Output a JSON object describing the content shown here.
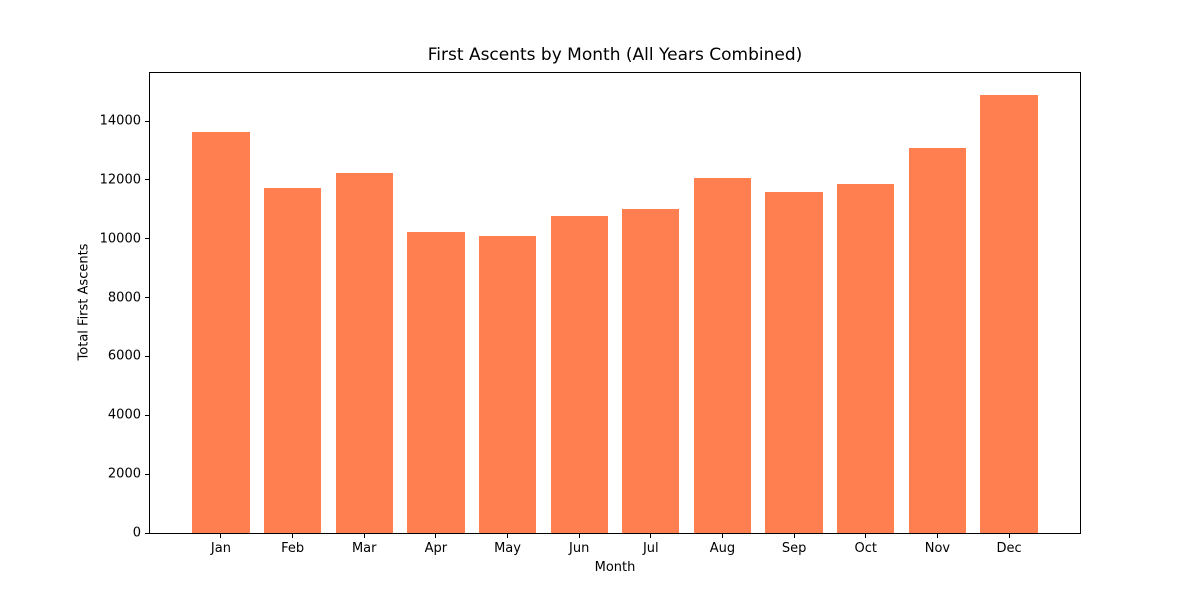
{
  "chart_data": {
    "type": "bar",
    "title": "First Ascents by Month (All Years Combined)",
    "xlabel": "Month",
    "ylabel": "Total First Ascents",
    "categories": [
      "Jan",
      "Feb",
      "Mar",
      "Apr",
      "May",
      "Jun",
      "Jul",
      "Aug",
      "Sep",
      "Oct",
      "Nov",
      "Dec"
    ],
    "values": [
      13640,
      11740,
      12230,
      10240,
      10090,
      10780,
      11030,
      12080,
      11600,
      11860,
      13100,
      14890
    ],
    "ylim": [
      0,
      15635
    ],
    "yticks": [
      0,
      2000,
      4000,
      6000,
      8000,
      10000,
      12000,
      14000
    ],
    "bar_color": "#FF7F50",
    "background_color": "#FFFFFF",
    "spine_color": "#000000",
    "text_color": "#000000",
    "grid": false,
    "legend": false,
    "bar_relative_width": 0.8
  }
}
